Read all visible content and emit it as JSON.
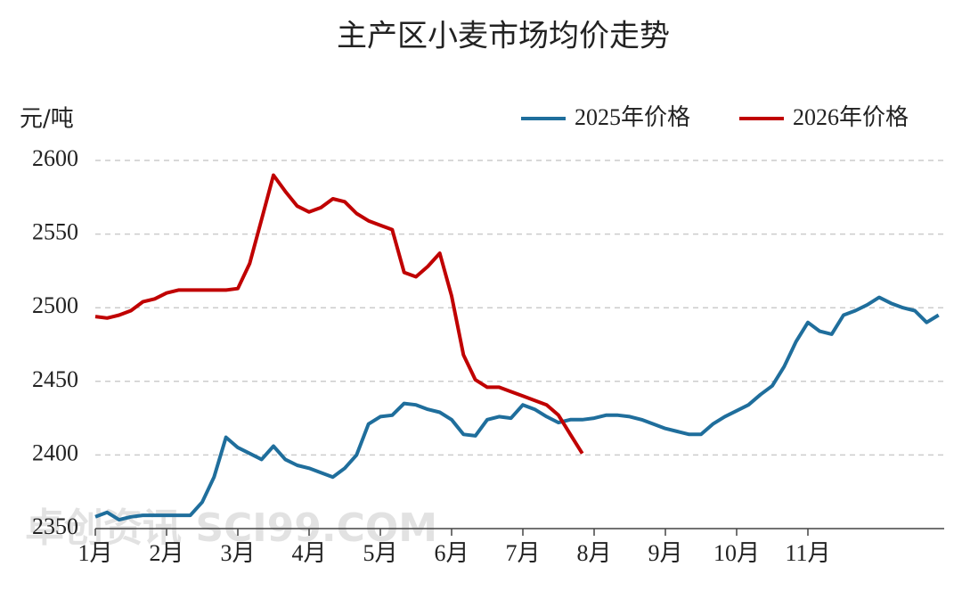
{
  "chart_data": {
    "type": "line",
    "title": "主产区小麦市场均价走势",
    "y_label": "元/吨",
    "watermark": "卓创资讯 SCI99.COM",
    "categories": [
      "1月",
      null,
      null,
      null,
      null,
      null,
      "2月",
      null,
      null,
      null,
      null,
      null,
      "3月",
      null,
      null,
      null,
      null,
      null,
      "4月",
      null,
      null,
      null,
      null,
      null,
      "5月",
      null,
      null,
      null,
      null,
      null,
      "6月",
      null,
      null,
      null,
      null,
      null,
      "7月",
      null,
      null,
      null,
      null,
      null,
      "8月",
      null,
      null,
      null,
      null,
      null,
      "9月",
      null,
      null,
      null,
      null,
      null,
      "10月",
      null,
      null,
      null,
      null,
      null,
      "11月",
      null,
      null,
      null,
      null,
      null,
      null,
      null,
      null,
      null,
      null,
      null
    ],
    "series": [
      {
        "name": "2025年价格",
        "color": "#1f6e9c",
        "values": [
          2358,
          2361,
          2356,
          2358,
          2359,
          2359,
          2359,
          2359,
          2359,
          2368,
          2385,
          2412,
          2405,
          2401,
          2397,
          2406,
          2397,
          2393,
          2391,
          2388,
          2385,
          2391,
          2400,
          2421,
          2426,
          2427,
          2435,
          2434,
          2431,
          2429,
          2424,
          2414,
          2413,
          2424,
          2426,
          2425,
          2434,
          2431,
          2426,
          2422,
          2424,
          2424,
          2425,
          2427,
          2427,
          2426,
          2424,
          2421,
          2418,
          2416,
          2414,
          2414,
          2421,
          2426,
          2430,
          2434,
          2441,
          2447,
          2460,
          2477,
          2490,
          2484,
          2482,
          2495,
          2498,
          2502,
          2507,
          2503,
          2500,
          2498,
          2490,
          2495
        ]
      },
      {
        "name": "2026年价格",
        "color": "#c00000",
        "values": [
          2494,
          2493,
          2495,
          2498,
          2504,
          2506,
          2510,
          2512,
          2512,
          2512,
          2512,
          2512,
          2513,
          2530,
          2560,
          2590,
          2579,
          2569,
          2565,
          2568,
          2574,
          2572,
          2564,
          2559,
          2556,
          2553,
          2524,
          2521,
          2528,
          2537,
          2508,
          2468,
          2451,
          2446,
          2446,
          2443,
          2440,
          2437,
          2434,
          2427,
          2414,
          2401,
          null,
          null,
          null,
          null,
          null,
          null,
          null,
          null,
          null,
          null,
          null,
          null,
          null,
          null,
          null,
          null,
          null,
          null,
          null,
          null,
          null,
          null,
          null,
          null,
          null,
          null,
          null,
          null,
          null,
          null
        ]
      }
    ],
    "ylim": [
      2350,
      2600
    ],
    "yticks": [
      2350,
      2400,
      2450,
      2500,
      2550,
      2600
    ],
    "grid": true
  }
}
